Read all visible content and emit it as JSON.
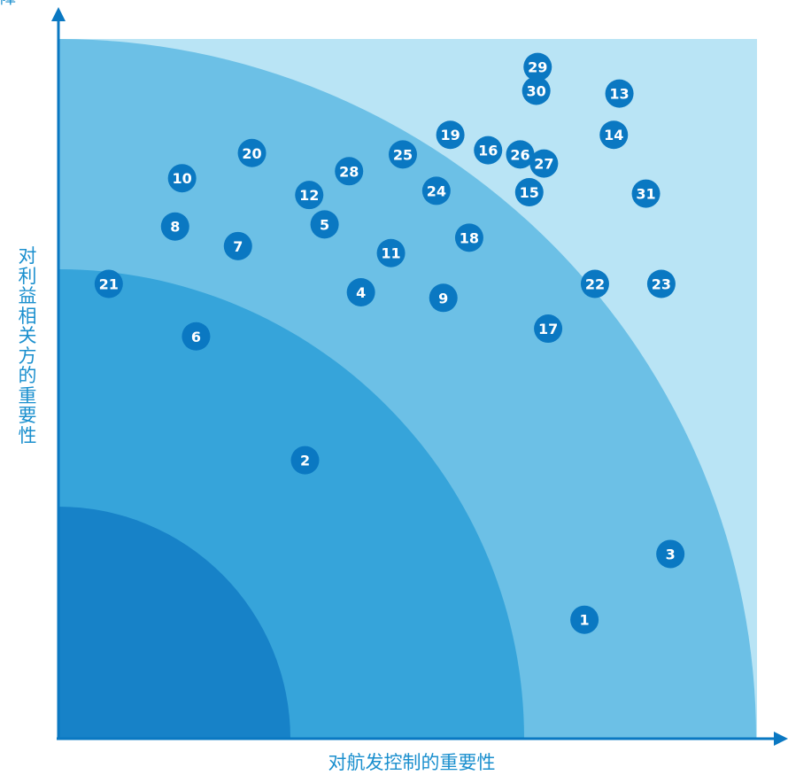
{
  "chart_data": {
    "type": "scatter",
    "title": "",
    "top_text": "障",
    "xlabel": "对航发控制的重要性",
    "ylabel": "对利益相关方的重要性",
    "xlim": [
      0,
      100
    ],
    "ylim": [
      0,
      100
    ],
    "grid": false,
    "legend": "none",
    "zones": [
      {
        "radius": 100,
        "color": "#b9e4f5"
      },
      {
        "radius": 67,
        "color": "#6cc0e6"
      },
      {
        "radius": 67,
        "color": "#36a4da"
      },
      {
        "radius": 33,
        "color": "#1782c8"
      }
    ],
    "point_color": "#0a78c2",
    "points": [
      {
        "label": "1",
        "x": 75.3,
        "y": 17.0
      },
      {
        "label": "2",
        "x": 35.3,
        "y": 39.8
      },
      {
        "label": "3",
        "x": 87.6,
        "y": 26.4
      },
      {
        "label": "4",
        "x": 43.3,
        "y": 63.8
      },
      {
        "label": "5",
        "x": 38.1,
        "y": 73.5
      },
      {
        "label": "6",
        "x": 19.7,
        "y": 57.5
      },
      {
        "label": "7",
        "x": 25.7,
        "y": 70.4
      },
      {
        "label": "8",
        "x": 16.7,
        "y": 73.2
      },
      {
        "label": "9",
        "x": 55.1,
        "y": 63.0
      },
      {
        "label": "10",
        "x": 17.7,
        "y": 80.1
      },
      {
        "label": "11",
        "x": 47.6,
        "y": 69.4
      },
      {
        "label": "12",
        "x": 35.9,
        "y": 77.7
      },
      {
        "label": "13",
        "x": 80.3,
        "y": 92.2
      },
      {
        "label": "14",
        "x": 79.5,
        "y": 86.3
      },
      {
        "label": "15",
        "x": 67.4,
        "y": 78.1
      },
      {
        "label": "16",
        "x": 61.5,
        "y": 84.1
      },
      {
        "label": "17",
        "x": 70.1,
        "y": 58.6
      },
      {
        "label": "18",
        "x": 58.8,
        "y": 71.6
      },
      {
        "label": "19",
        "x": 56.1,
        "y": 86.3
      },
      {
        "label": "20",
        "x": 27.7,
        "y": 83.7
      },
      {
        "label": "21",
        "x": 7.2,
        "y": 65.0
      },
      {
        "label": "22",
        "x": 76.8,
        "y": 65.0
      },
      {
        "label": "23",
        "x": 86.3,
        "y": 65.0
      },
      {
        "label": "24",
        "x": 54.1,
        "y": 78.3
      },
      {
        "label": "25",
        "x": 49.3,
        "y": 83.5
      },
      {
        "label": "26",
        "x": 66.1,
        "y": 83.5
      },
      {
        "label": "27",
        "x": 69.5,
        "y": 82.2
      },
      {
        "label": "28",
        "x": 41.6,
        "y": 81.1
      },
      {
        "label": "29",
        "x": 68.6,
        "y": 96.0
      },
      {
        "label": "30",
        "x": 68.4,
        "y": 92.6
      },
      {
        "label": "31",
        "x": 84.1,
        "y": 77.9
      }
    ]
  }
}
